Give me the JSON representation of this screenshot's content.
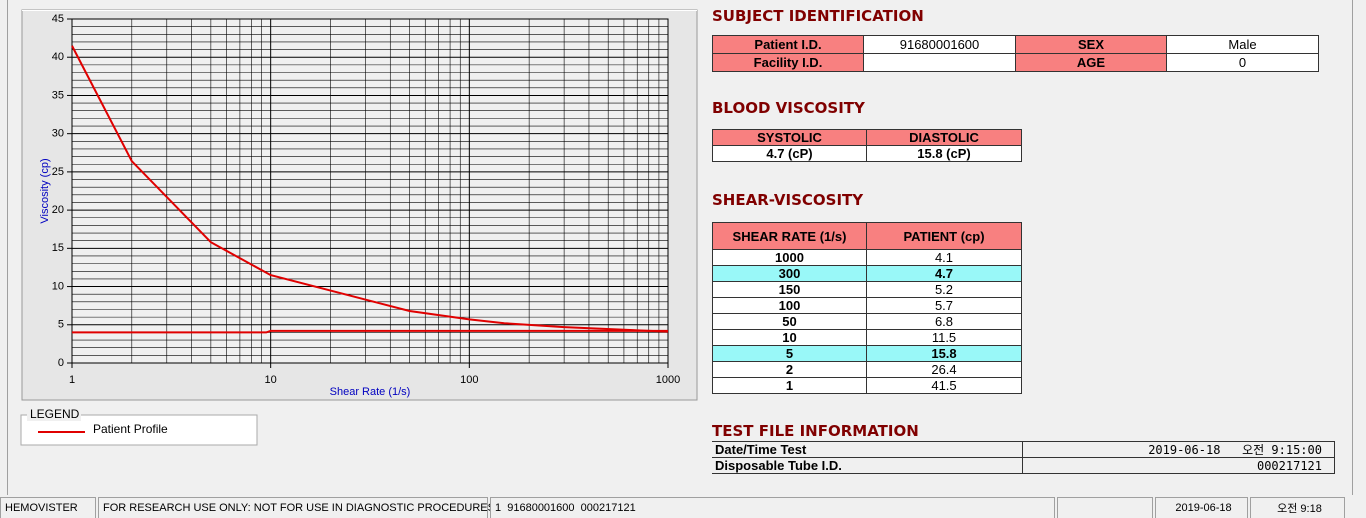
{
  "chart_data": {
    "type": "line",
    "xlabel": "Shear Rate (1/s)",
    "ylabel": "Viscosity (cp)",
    "x_log": true,
    "grid": true,
    "xlim": [
      1,
      1000
    ],
    "ylim": [
      0,
      45
    ],
    "xticks": [
      1,
      10,
      100,
      1000
    ],
    "yticks": [
      0,
      5,
      10,
      15,
      20,
      25,
      30,
      35,
      40,
      45
    ],
    "legend_title": "LEGEND",
    "series": [
      {
        "name": "Patient Profile",
        "color": "#e00000",
        "x": [
          1,
          2,
          5,
          10,
          50,
          100,
          150,
          300,
          1000
        ],
        "values": [
          41.5,
          26.4,
          15.8,
          11.5,
          6.8,
          5.7,
          5.2,
          4.7,
          4.1
        ]
      },
      {
        "color": "#e00000",
        "x": [
          1,
          9.5,
          10,
          1000
        ],
        "values": [
          4,
          4,
          4.2,
          4.2
        ]
      }
    ]
  },
  "subject": {
    "title": "SUBJECT IDENTIFICATION",
    "fields": [
      {
        "label": "Patient I.D.",
        "value": "91680001600"
      },
      {
        "label": "SEX",
        "value": "Male"
      },
      {
        "label": "Facility I.D."
      },
      {
        "label": "AGE",
        "value": 0
      }
    ]
  },
  "blood_viscosity": {
    "title": "BLOOD VISCOSITY",
    "headers": [
      "SYSTOLIC",
      "DIASTOLIC"
    ],
    "values": [
      "4.7 (cP)",
      "15.8 (cP)"
    ]
  },
  "shear_viscosity": {
    "title": "SHEAR-VISCOSITY",
    "headers": [
      "SHEAR RATE (1/s)",
      "PATIENT (cp)"
    ],
    "highlight_color": "#99f8f8",
    "rows": [
      {
        "rate": 1000,
        "value": 4.1
      },
      {
        "rate": 300,
        "value": 4.7,
        "highlight": true
      },
      {
        "rate": 150,
        "value": 5.2
      },
      {
        "rate": 100,
        "value": 5.7
      },
      {
        "rate": 50,
        "value": 6.8
      },
      {
        "rate": 10,
        "value": 11.5
      },
      {
        "rate": 5,
        "value": 15.8,
        "highlight": true
      },
      {
        "rate": 2,
        "value": 26.4
      },
      {
        "rate": 1,
        "value": 41.5
      }
    ]
  },
  "test_file": {
    "title": "TEST FILE INFORMATION",
    "rows": [
      {
        "label": "Date/Time Test",
        "value": "2019-06-18   오전 9:15:00"
      },
      {
        "label": "Disposable Tube I.D.",
        "value": "000217121"
      }
    ]
  },
  "status_bar": [
    "HEMOVISTER",
    "FOR RESEARCH USE ONLY: NOT FOR USE IN DIAGNOSTIC PROCEDURES",
    "1  91680001600  000217121",
    "2019-06-18",
    "오전 9:18"
  ]
}
